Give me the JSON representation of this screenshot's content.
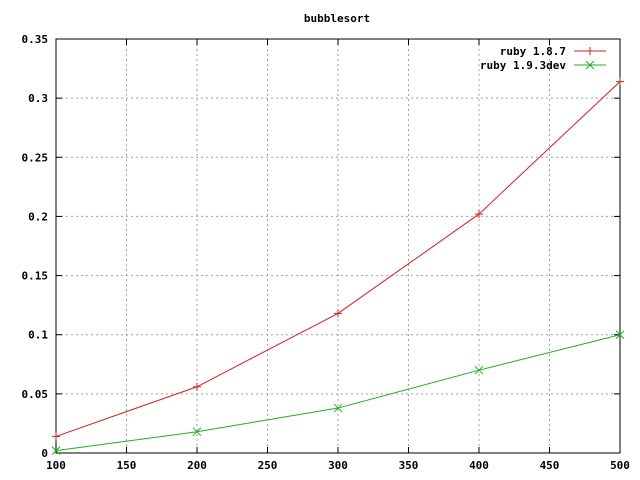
{
  "chart_data": {
    "type": "line",
    "title": "bubblesort",
    "xlabel": "",
    "ylabel": "",
    "xlim": [
      100,
      500
    ],
    "ylim": [
      0,
      0.35
    ],
    "x_ticks": [
      "100",
      "150",
      "200",
      "250",
      "300",
      "350",
      "400",
      "450",
      "500"
    ],
    "y_ticks": [
      "0",
      "0.05",
      "0.1",
      "0.15",
      "0.2",
      "0.25",
      "0.3",
      "0.35"
    ],
    "x": [
      100,
      200,
      300,
      400,
      500
    ],
    "grid": true,
    "legend_position": "top-right",
    "series": [
      {
        "name": "ruby 1.8.7",
        "values": [
          0.014,
          0.056,
          0.118,
          0.202,
          0.314
        ],
        "color": "#d62020",
        "marker": "plus"
      },
      {
        "name": "ruby 1.9.3dev",
        "values": [
          0.002,
          0.018,
          0.038,
          0.07,
          0.1
        ],
        "color": "#20b020",
        "marker": "cross"
      }
    ]
  }
}
